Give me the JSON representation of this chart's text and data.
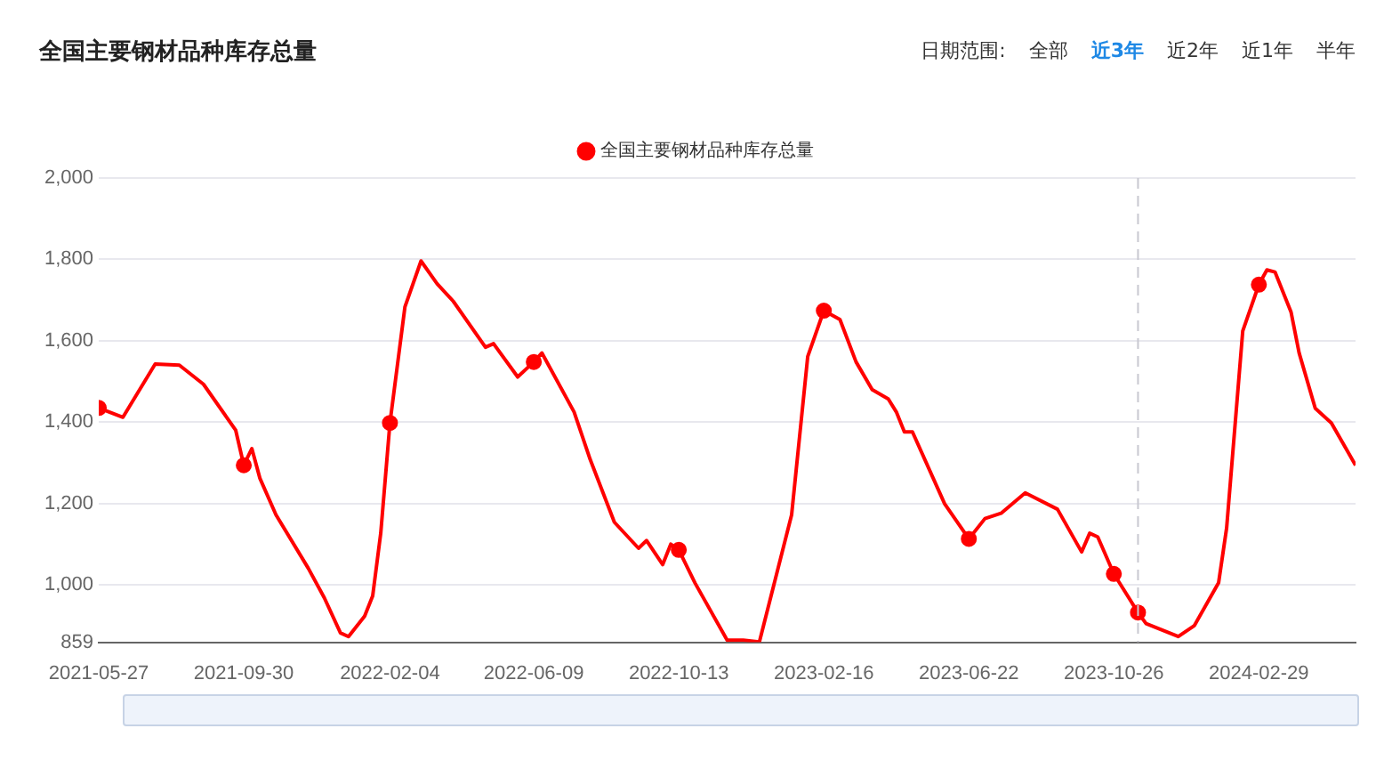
{
  "chart_data": {
    "type": "line",
    "title": "全国主要钢材品种库存总量",
    "annotations": [
      "日期范围:",
      "全部",
      "近3年",
      "近2年",
      "近1年",
      "半年"
    ],
    "x": [
      "2021-05-27",
      "2021-06-17",
      "2021-07-15",
      "2021-08-05",
      "2021-08-26",
      "2021-09-23",
      "2021-09-30",
      "2021-10-07",
      "2021-10-14",
      "2021-10-28",
      "2021-11-25",
      "2021-12-09",
      "2021-12-23",
      "2021-12-30",
      "2022-01-13",
      "2022-01-20",
      "2022-01-27",
      "2022-02-04",
      "2022-02-17",
      "2022-03-03",
      "2022-03-17",
      "2022-03-31",
      "2022-04-28",
      "2022-05-05",
      "2022-05-26",
      "2022-06-09",
      "2022-06-16",
      "2022-07-14",
      "2022-07-28",
      "2022-08-18",
      "2022-09-08",
      "2022-09-15",
      "2022-09-29",
      "2022-10-06",
      "2022-10-13",
      "2022-10-27",
      "2022-11-24",
      "2022-12-08",
      "2022-12-22",
      "2023-01-19",
      "2023-02-02",
      "2023-02-16",
      "2023-03-02",
      "2023-03-16",
      "2023-03-30",
      "2023-04-13",
      "2023-04-20",
      "2023-04-27",
      "2023-05-04",
      "2023-06-01",
      "2023-06-22",
      "2023-07-06",
      "2023-07-20",
      "2023-08-10",
      "2023-09-07",
      "2023-09-28",
      "2023-10-05",
      "2023-10-12",
      "2023-10-26",
      "2023-11-16",
      "2023-11-23",
      "2023-12-21",
      "2024-01-04",
      "2024-01-25",
      "2024-02-01",
      "2024-02-15",
      "2024-02-29",
      "2024-03-07",
      "2024-03-14",
      "2024-03-28",
      "2024-04-04",
      "2024-04-18",
      "2024-05-02",
      "2024-05-23"
    ],
    "series": [
      {
        "name": "全国主要钢材品种库存总量",
        "color": "#ff0000",
        "values": [
          1435,
          1412,
          1543,
          1540,
          1493,
          1380,
          1294,
          1335,
          1262,
          1172,
          1041,
          968,
          882,
          873,
          923,
          973,
          1127,
          1398,
          1683,
          1796,
          1740,
          1697,
          1584,
          1593,
          1511,
          1548,
          1570,
          1425,
          1308,
          1154,
          1090,
          1109,
          1050,
          1100,
          1086,
          1005,
          864,
          864,
          860,
          1172,
          1561,
          1674,
          1652,
          1548,
          1480,
          1457,
          1425,
          1376,
          1376,
          1199,
          1113,
          1163,
          1176,
          1226,
          1186,
          1081,
          1127,
          1118,
          1027,
          932,
          905,
          873,
          900,
          1005,
          1140,
          1624,
          1738,
          1774,
          1769,
          1670,
          1570,
          1434,
          1398,
          1294
        ]
      }
    ],
    "xlim": [
      "2021-05-27",
      "2024-05-23"
    ],
    "xticks": [
      "2021-05-27",
      "2021-09-30",
      "2022-02-04",
      "2022-06-09",
      "2022-10-13",
      "2023-02-16",
      "2023-06-22",
      "2023-10-26",
      "2024-02-29"
    ],
    "ylim": [
      859,
      2000
    ],
    "yticks": [
      859,
      {
        "value": 1000,
        "label": "1,000"
      },
      {
        "value": 1200,
        "label": "1,200"
      },
      {
        "value": 1400,
        "label": "1,400"
      },
      {
        "value": 1600,
        "label": "1,600"
      },
      {
        "value": 1800,
        "label": "1,800"
      },
      {
        "value": 2000,
        "label": "2,000"
      }
    ],
    "ref_lines": [
      {
        "axis": "x",
        "value": "2023-11-16",
        "color": "#c8c8d0",
        "line_style": "dashed"
      }
    ],
    "grid": "y",
    "legend": "top",
    "line_style": "solid"
  }
}
